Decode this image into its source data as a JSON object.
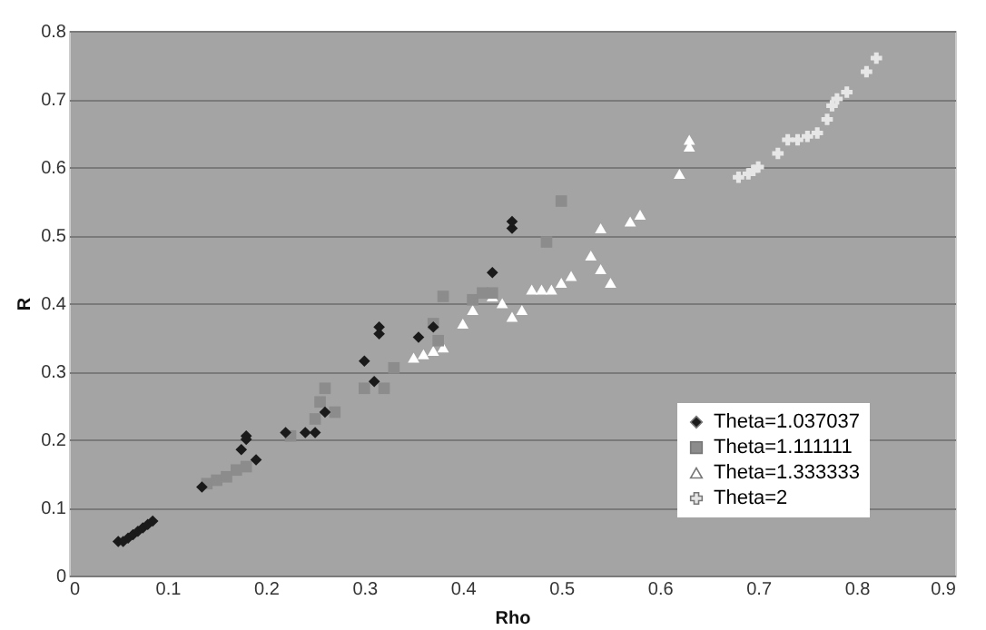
{
  "chart_data": {
    "type": "scatter",
    "xlabel": "Rho",
    "ylabel": "R",
    "xlim": [
      0,
      0.9
    ],
    "ylim": [
      0,
      0.8
    ],
    "xticks": [
      0,
      0.1,
      0.2,
      0.3,
      0.4,
      0.5,
      0.6,
      0.7,
      0.8,
      0.9
    ],
    "yticks": [
      0,
      0.1,
      0.2,
      0.3,
      0.4,
      0.5,
      0.6,
      0.7,
      0.8
    ],
    "grid": "y",
    "legend": "bottom right",
    "series": [
      {
        "name": "Theta=1.037037",
        "color": "#1a1a1a",
        "marker": "diamond",
        "x": [
          0.05,
          0.055,
          0.06,
          0.065,
          0.07,
          0.075,
          0.08,
          0.085,
          0.135,
          0.175,
          0.18,
          0.18,
          0.19,
          0.22,
          0.24,
          0.25,
          0.26,
          0.3,
          0.31,
          0.315,
          0.315,
          0.355,
          0.37,
          0.43,
          0.45,
          0.45
        ],
        "values": [
          0.05,
          0.05,
          0.055,
          0.06,
          0.065,
          0.07,
          0.075,
          0.08,
          0.13,
          0.185,
          0.205,
          0.2,
          0.17,
          0.21,
          0.21,
          0.21,
          0.24,
          0.315,
          0.285,
          0.355,
          0.365,
          0.35,
          0.365,
          0.445,
          0.51,
          0.52
        ]
      },
      {
        "name": "Theta=1.111111",
        "color": "#8c8c8c",
        "marker": "square",
        "x": [
          0.14,
          0.15,
          0.16,
          0.17,
          0.18,
          0.225,
          0.25,
          0.255,
          0.26,
          0.27,
          0.3,
          0.32,
          0.33,
          0.37,
          0.375,
          0.38,
          0.41,
          0.42,
          0.43,
          0.485,
          0.5
        ],
        "values": [
          0.135,
          0.14,
          0.145,
          0.155,
          0.16,
          0.205,
          0.23,
          0.255,
          0.275,
          0.24,
          0.275,
          0.275,
          0.305,
          0.37,
          0.345,
          0.41,
          0.405,
          0.415,
          0.415,
          0.49,
          0.55
        ]
      },
      {
        "name": "Theta=1.333333",
        "color": "#ffffff",
        "marker": "triangle",
        "x": [
          0.35,
          0.36,
          0.37,
          0.38,
          0.4,
          0.41,
          0.43,
          0.44,
          0.45,
          0.46,
          0.47,
          0.48,
          0.49,
          0.5,
          0.51,
          0.53,
          0.54,
          0.54,
          0.55,
          0.57,
          0.58,
          0.62,
          0.63,
          0.63
        ],
        "values": [
          0.32,
          0.325,
          0.33,
          0.335,
          0.37,
          0.39,
          0.41,
          0.4,
          0.38,
          0.39,
          0.42,
          0.42,
          0.42,
          0.43,
          0.44,
          0.47,
          0.51,
          0.45,
          0.43,
          0.52,
          0.53,
          0.59,
          0.63,
          0.64
        ]
      },
      {
        "name": "Theta=2",
        "color": "#e6e6e6",
        "marker": "cross",
        "x": [
          0.68,
          0.69,
          0.695,
          0.7,
          0.72,
          0.73,
          0.74,
          0.75,
          0.76,
          0.77,
          0.775,
          0.78,
          0.79,
          0.81,
          0.82
        ],
        "values": [
          0.585,
          0.59,
          0.595,
          0.6,
          0.62,
          0.64,
          0.64,
          0.645,
          0.65,
          0.67,
          0.69,
          0.7,
          0.71,
          0.74,
          0.76
        ]
      }
    ]
  }
}
